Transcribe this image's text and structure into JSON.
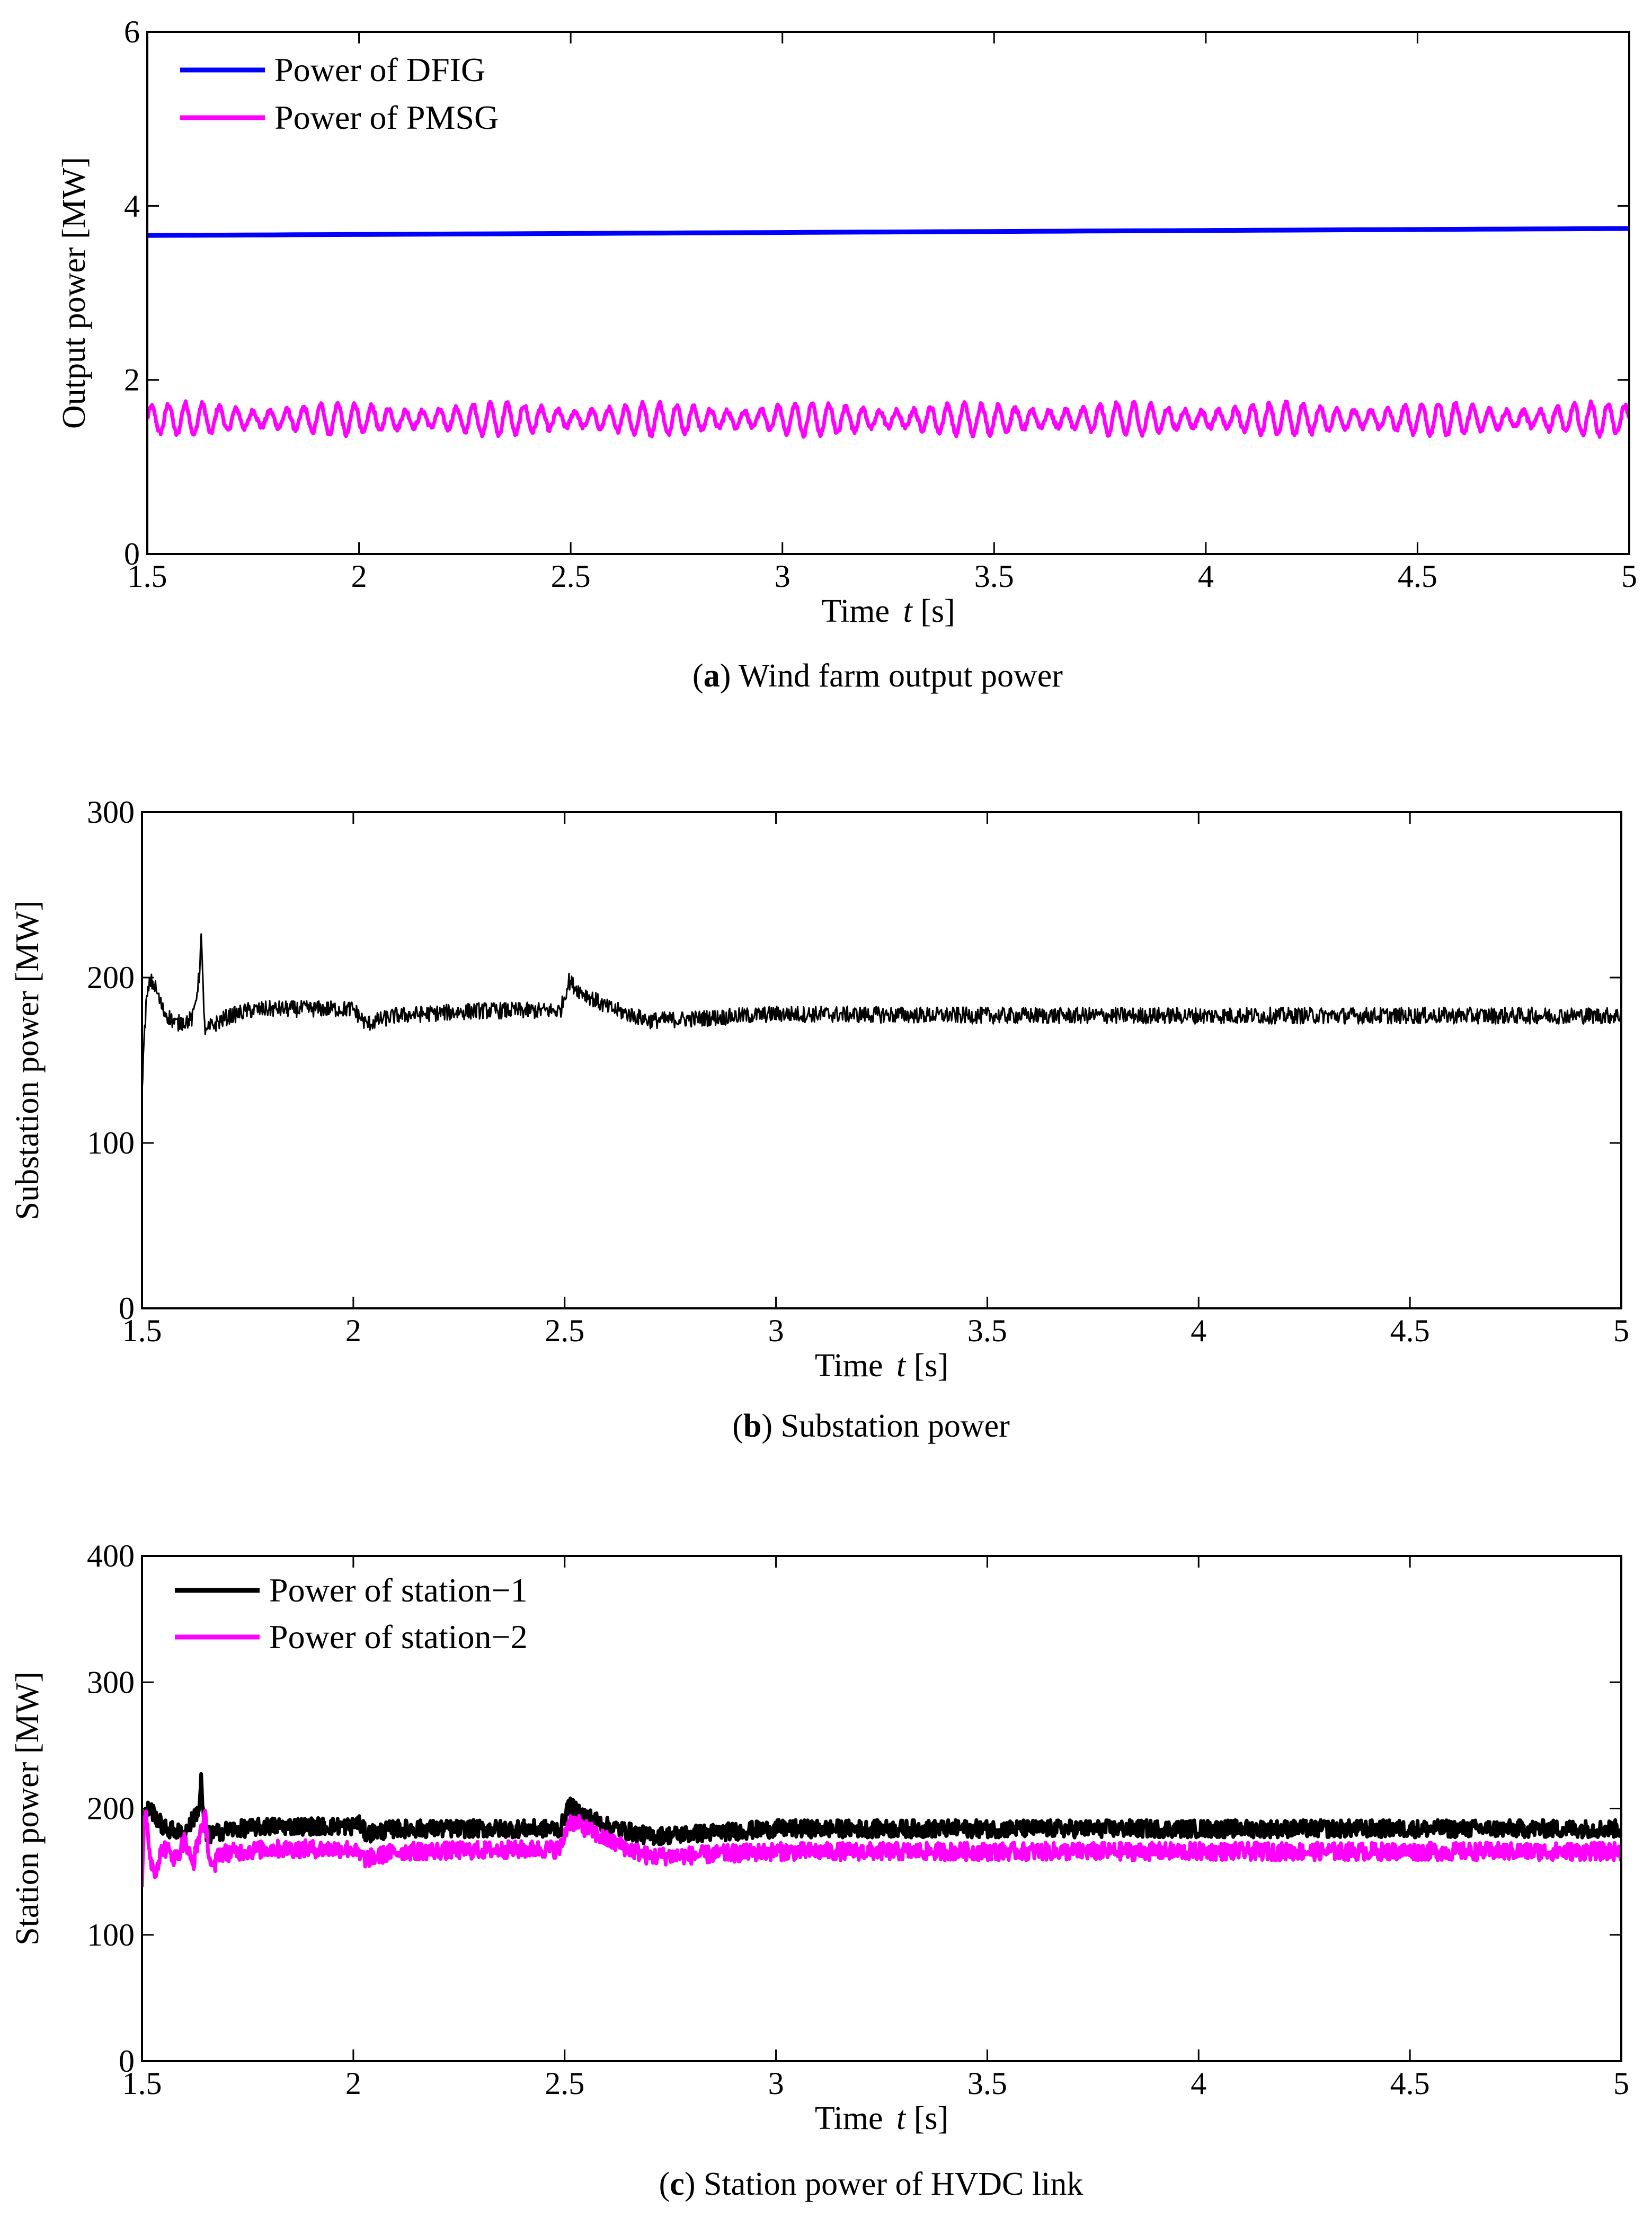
{
  "chart_data": [
    {
      "type": "line",
      "caption_key": "a",
      "caption_text": "Wind farm output power",
      "xlabel_prefix": "Time ",
      "xlabel_var": "t",
      "xlabel_unit": " [s]",
      "ylabel": "Output power [MW]",
      "xlim": [
        1.5,
        5
      ],
      "ylim": [
        0,
        6
      ],
      "xticks": [
        "1.5",
        "2",
        "2.5",
        "3",
        "3.5",
        "4",
        "4.5",
        "5"
      ],
      "yticks": [
        "0",
        "2",
        "4",
        "6"
      ],
      "legend": "top-left",
      "series": [
        {
          "name": "Power of DFIG",
          "color": "#0000ff",
          "kind": "linear",
          "start": 3.66,
          "end": 3.74
        },
        {
          "name": "Power of PMSG",
          "color": "#ff00ff",
          "kind": "oscillating",
          "mean": 1.55,
          "amplitude": 0.18,
          "period": 0.04
        }
      ]
    },
    {
      "type": "line",
      "caption_key": "b",
      "caption_text": "Substation power",
      "xlabel_prefix": "Time ",
      "xlabel_var": "t",
      "xlabel_unit": " [s]",
      "ylabel": "Substation power [MW]",
      "xlim": [
        1.5,
        5
      ],
      "ylim": [
        0,
        300
      ],
      "xticks": [
        "1.5",
        "2",
        "2.5",
        "3",
        "3.5",
        "4",
        "4.5",
        "5"
      ],
      "yticks": [
        "0",
        "100",
        "200",
        "300"
      ],
      "legend": "none",
      "series": [
        {
          "name": "",
          "color": "#000000",
          "kind": "profile",
          "x": [
            1.5,
            1.51,
            1.52,
            1.53,
            1.55,
            1.58,
            1.62,
            1.635,
            1.64,
            1.645,
            1.65,
            1.66,
            1.7,
            1.75,
            1.8,
            1.9,
            2.0,
            2.01,
            2.03,
            2.1,
            2.3,
            2.49,
            2.51,
            2.53,
            2.6,
            2.7,
            2.8,
            3.0,
            3.5,
            4.0,
            5.0
          ],
          "y": [
            135,
            185,
            198,
            195,
            180,
            172,
            175,
            200,
            224,
            190,
            165,
            170,
            176,
            180,
            181,
            181,
            181,
            178,
            172,
            177,
            180,
            180,
            198,
            193,
            182,
            174,
            175,
            178,
            177,
            177,
            177
          ],
          "ripple": 5
        }
      ]
    },
    {
      "type": "line",
      "caption_key": "c",
      "caption_text": "Station power of HVDC link",
      "xlabel_prefix": "Time ",
      "xlabel_var": "t",
      "xlabel_unit": " [s]",
      "ylabel": "Station power [MW]",
      "xlim": [
        1.5,
        5
      ],
      "ylim": [
        0,
        400
      ],
      "xticks": [
        "1.5",
        "2",
        "2.5",
        "3",
        "3.5",
        "4",
        "4.5",
        "5"
      ],
      "yticks": [
        "0",
        "100",
        "200",
        "300",
        "400"
      ],
      "legend": "top-left",
      "series": [
        {
          "name": "Power of station−1",
          "color": "#000000",
          "kind": "profile",
          "x": [
            1.5,
            1.51,
            1.52,
            1.55,
            1.6,
            1.635,
            1.64,
            1.645,
            1.65,
            1.7,
            1.8,
            2.0,
            2.01,
            2.03,
            2.1,
            2.49,
            2.51,
            2.53,
            2.6,
            2.7,
            2.8,
            3.0,
            5.0
          ],
          "y": [
            185,
            198,
            200,
            185,
            180,
            200,
            222,
            195,
            178,
            183,
            186,
            186,
            190,
            180,
            184,
            184,
            202,
            198,
            186,
            178,
            180,
            184,
            184
          ],
          "ripple": 7
        },
        {
          "name": "Power of station−2",
          "color": "#ff00ff",
          "kind": "profile",
          "x": [
            1.5,
            1.505,
            1.51,
            1.52,
            1.53,
            1.55,
            1.58,
            1.6,
            1.62,
            1.64,
            1.65,
            1.66,
            1.67,
            1.68,
            1.7,
            1.8,
            2.0,
            2.01,
            2.03,
            2.1,
            2.49,
            2.51,
            2.53,
            2.6,
            2.7,
            2.8,
            3.0,
            5.0
          ],
          "y": [
            140,
            185,
            195,
            160,
            150,
            170,
            160,
            175,
            155,
            185,
            192,
            160,
            150,
            165,
            165,
            168,
            168,
            163,
            160,
            166,
            168,
            190,
            188,
            175,
            162,
            163,
            166,
            166
          ],
          "ripple": 7
        }
      ]
    }
  ]
}
